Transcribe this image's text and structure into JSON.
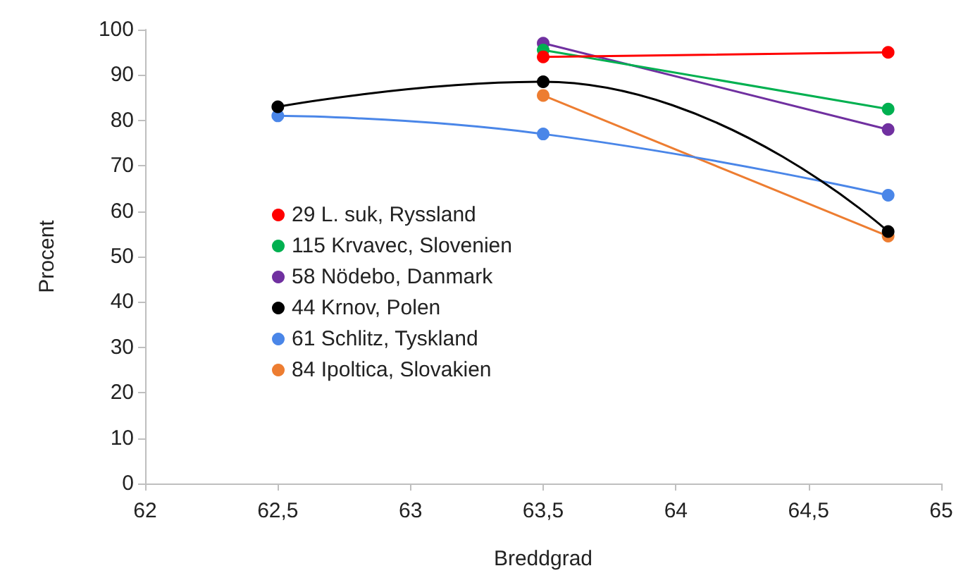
{
  "chart_data": {
    "type": "line",
    "xlabel": "Breddgrad",
    "ylabel": "Procent",
    "xlim": [
      62,
      65
    ],
    "xticks": [
      62,
      {
        "value": 62.5,
        "label": "62,5"
      },
      63,
      {
        "value": 63.5,
        "label": "63,5"
      },
      64,
      {
        "value": 64.5,
        "label": "64,5"
      },
      65
    ],
    "ylim": [
      0,
      100
    ],
    "yticks": [
      0,
      10,
      20,
      30,
      40,
      50,
      60,
      70,
      80,
      90,
      100
    ],
    "grid": false,
    "legend": "left",
    "marker": "circle",
    "line_style": "solid",
    "series": [
      {
        "name": "29 L. suk, Ryssland",
        "color": "#ff0000",
        "x": [
          63.5,
          64.8
        ],
        "values": [
          94,
          95
        ]
      },
      {
        "name": "115 Krvavec, Slovenien",
        "color": "#00b050",
        "x": [
          63.5,
          64.8
        ],
        "values": [
          95.5,
          82.5
        ]
      },
      {
        "name": "58 Nödebo, Danmark",
        "color": "#7030a0",
        "x": [
          63.5,
          64.8
        ],
        "values": [
          97,
          78
        ]
      },
      {
        "name": "44 Krnov, Polen",
        "color": "#000000",
        "x": [
          62.5,
          63.5,
          64.8
        ],
        "values": [
          83,
          88.5,
          55.5
        ]
      },
      {
        "name": "61 Schlitz, Tyskland",
        "color": "#4a86e8",
        "x": [
          62.5,
          63.5,
          64.8
        ],
        "values": [
          81,
          77,
          63.5
        ]
      },
      {
        "name": "84 Ipoltica, Slovakien",
        "color": "#ed7d31",
        "x": [
          63.5,
          64.8
        ],
        "values": [
          85.5,
          54.5
        ]
      }
    ]
  }
}
